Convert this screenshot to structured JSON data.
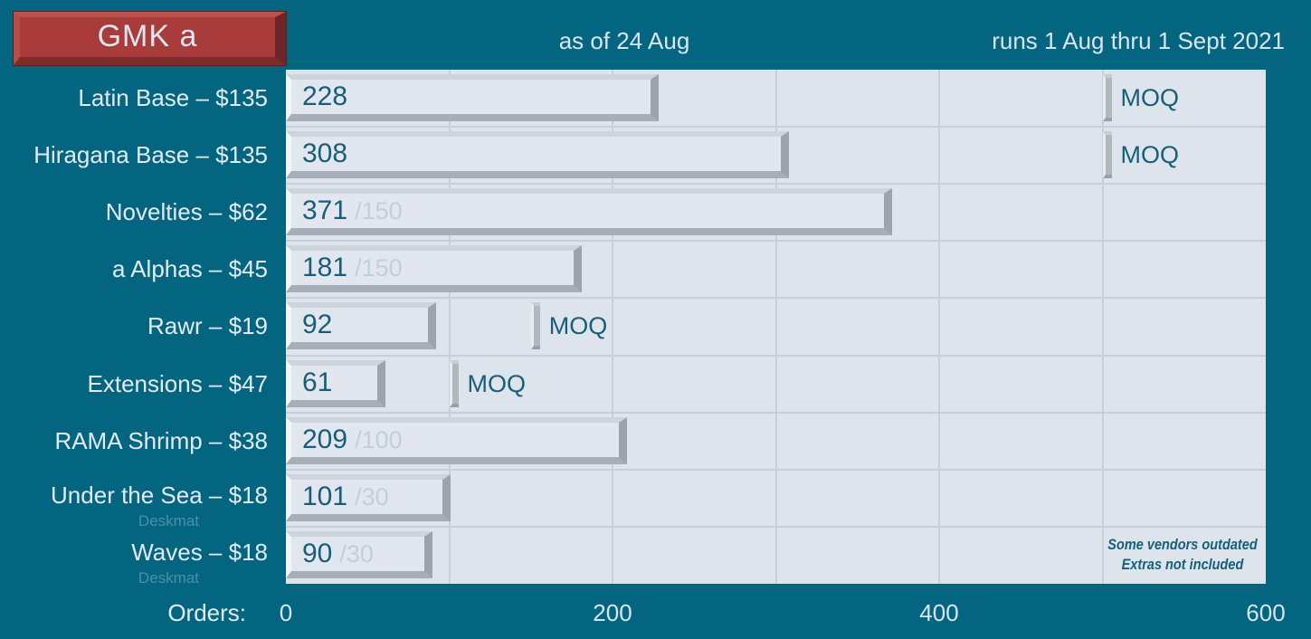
{
  "header": {
    "badge": "GMK a",
    "as_of": "as of 24 Aug",
    "runs": "runs 1 Aug thru 1 Sept 2021"
  },
  "axis": {
    "label": "Orders:"
  },
  "note": {
    "line1": "Some vendors outdated",
    "line2": "Extras not included"
  },
  "chart_data": {
    "type": "bar",
    "orientation": "horizontal",
    "title": "GMK a",
    "xlabel": "Orders:",
    "xlim": [
      0,
      600
    ],
    "xticks": [
      0,
      200,
      400,
      600
    ],
    "grid_interval": 100,
    "grid": true,
    "moq_label": "MOQ",
    "rows": [
      {
        "label": "Latin Base – $135",
        "sublabel": "",
        "orders": 228,
        "moq": 500,
        "goal": null
      },
      {
        "label": "Hiragana Base – $135",
        "sublabel": "",
        "orders": 308,
        "moq": 500,
        "goal": null
      },
      {
        "label": "Novelties – $62",
        "sublabel": "",
        "orders": 371,
        "moq": null,
        "goal": 150
      },
      {
        "label": "a Alphas – $45",
        "sublabel": "",
        "orders": 181,
        "moq": null,
        "goal": 150
      },
      {
        "label": "Rawr – $19",
        "sublabel": "",
        "orders": 92,
        "moq": 150,
        "goal": null
      },
      {
        "label": "Extensions – $47",
        "sublabel": "",
        "orders": 61,
        "moq": 100,
        "goal": null
      },
      {
        "label": "RAMA Shrimp – $38",
        "sublabel": "",
        "orders": 209,
        "moq": null,
        "goal": 100
      },
      {
        "label": "Under the Sea – $18",
        "sublabel": "Deskmat",
        "orders": 101,
        "moq": null,
        "goal": 30
      },
      {
        "label": "Waves – $18",
        "sublabel": "Deskmat",
        "orders": 90,
        "moq": null,
        "goal": 30
      }
    ]
  },
  "colors": {
    "background": "#046580",
    "plot_background": "#dde4ec",
    "gridline": "#c7cfd9",
    "bar_face": "#e2e7ef",
    "badge_red": "#a93b3a",
    "ink_teal": "#175e7a",
    "goal_faded": "#bfd0dc",
    "label_text": "#e2eaf2"
  }
}
